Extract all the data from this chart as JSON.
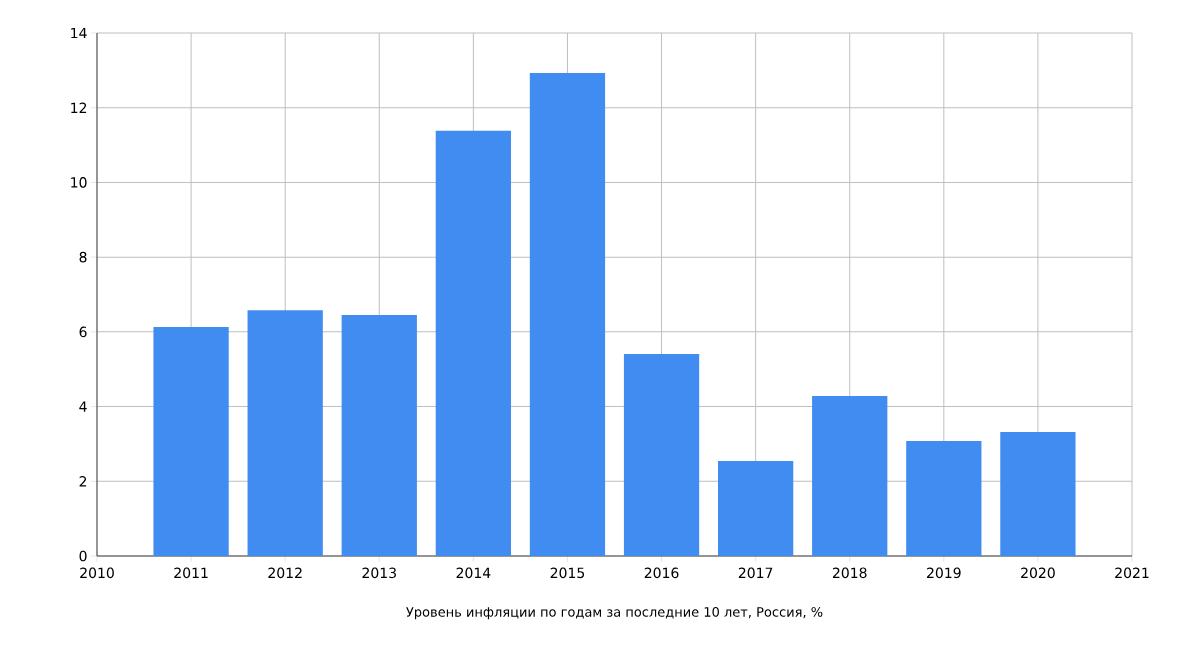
{
  "chart_data": {
    "type": "bar",
    "xlabel": "Уровень инфляции по годам за последние 10 лет, Россия, %",
    "x": [
      2011,
      2012,
      2013,
      2014,
      2015,
      2016,
      2017,
      2018,
      2019,
      2020
    ],
    "values": [
      6.13,
      6.58,
      6.45,
      11.38,
      12.93,
      5.41,
      2.54,
      4.28,
      3.08,
      3.32
    ],
    "color": "#418cf0",
    "xlim": [
      2010,
      2021
    ],
    "ylim": [
      0,
      14
    ],
    "xticks": [
      2010,
      2011,
      2012,
      2013,
      2014,
      2015,
      2016,
      2017,
      2018,
      2019,
      2020,
      2021
    ],
    "yticks": [
      0,
      2,
      4,
      6,
      8,
      10,
      12,
      14
    ],
    "grid": true
  }
}
